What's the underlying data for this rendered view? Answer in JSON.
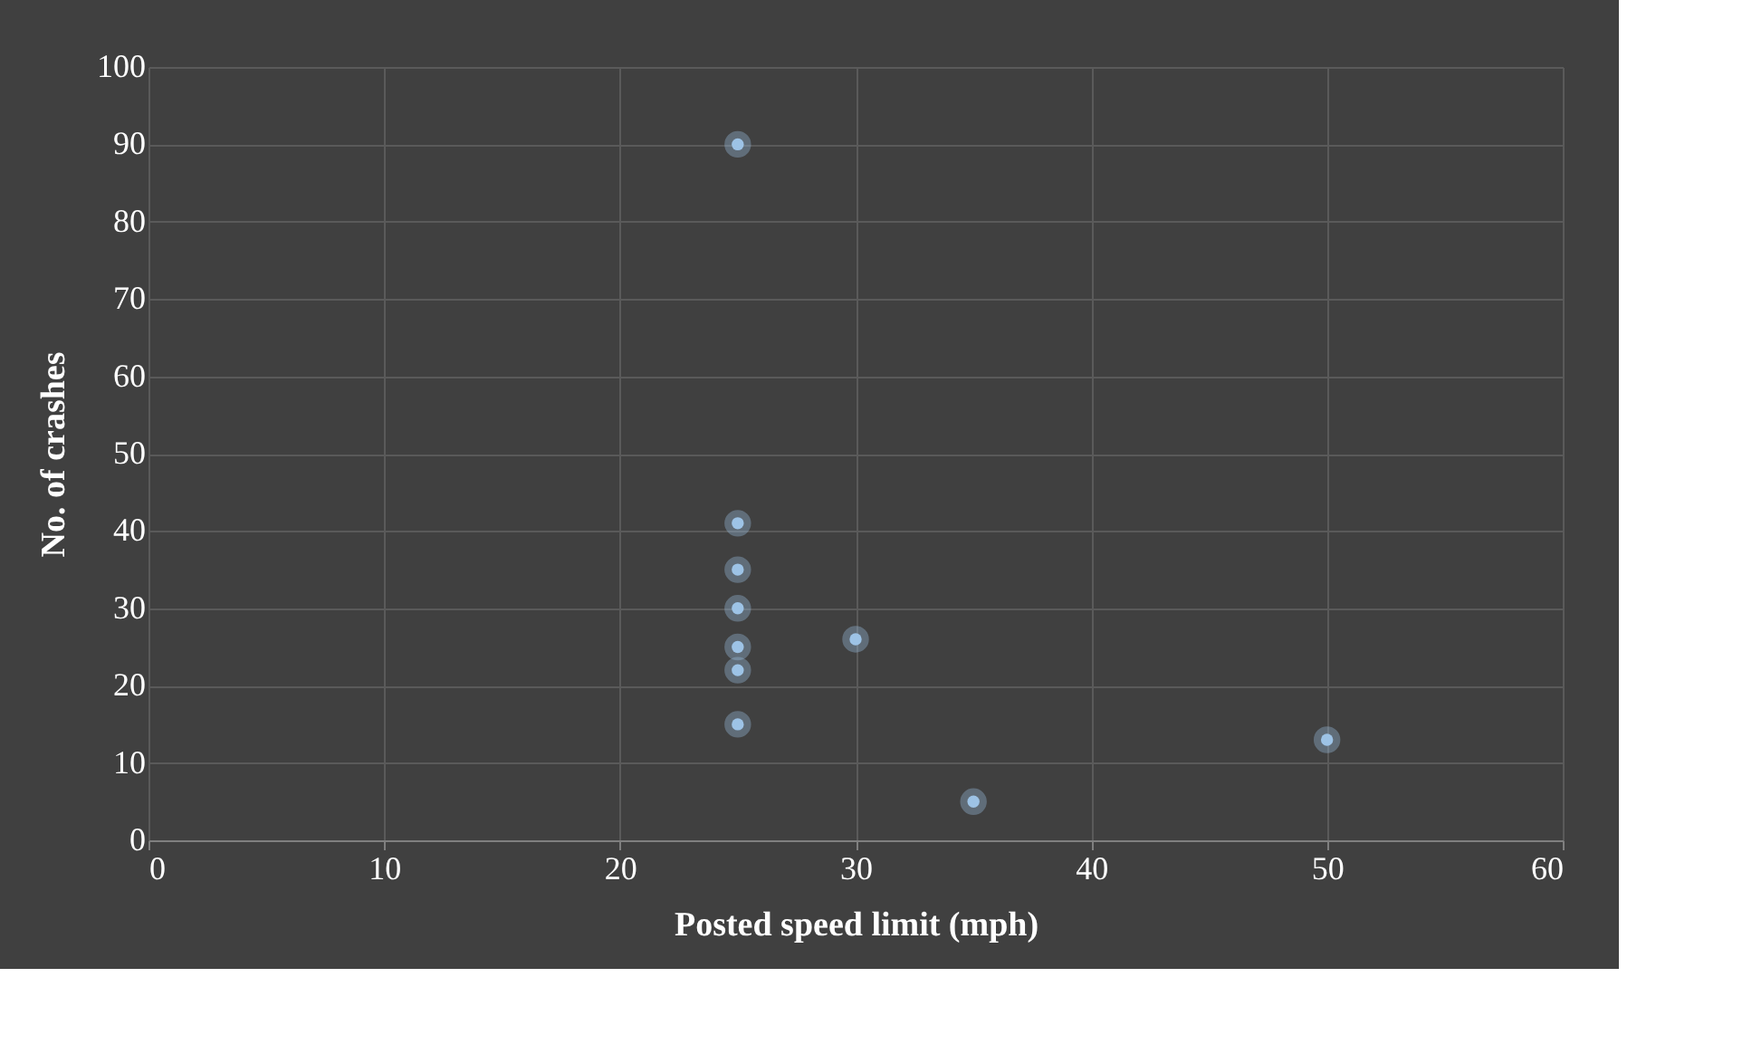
{
  "chart_data": {
    "type": "scatter",
    "xlabel": "Posted speed limit  (mph)",
    "ylabel": "No. of crashes",
    "x": [
      25,
      25,
      25,
      25,
      25,
      25,
      25,
      30,
      35,
      50
    ],
    "values": [
      90,
      41,
      35,
      30,
      25,
      22,
      15,
      26,
      5,
      13
    ],
    "color": "#9dc3e6",
    "marker": "circle",
    "grid": true,
    "xlim": [
      0,
      60
    ],
    "xticks": [
      0,
      10,
      20,
      30,
      40,
      50,
      60
    ],
    "ylim": [
      0,
      100
    ],
    "yticks": [
      0,
      10,
      20,
      30,
      40,
      50,
      60,
      70,
      80,
      90,
      100
    ]
  }
}
